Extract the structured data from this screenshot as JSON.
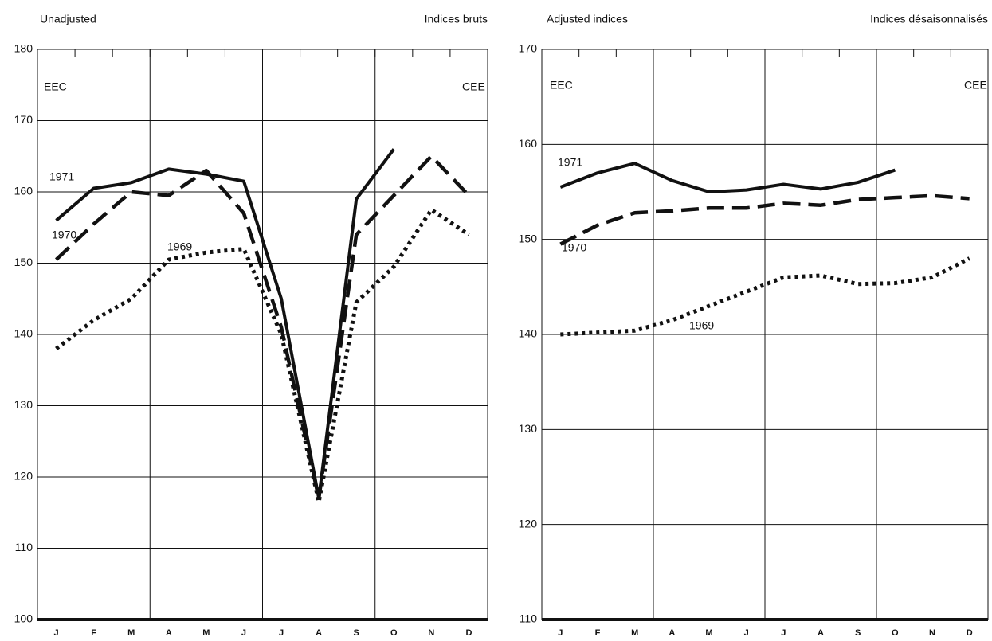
{
  "chart_data": [
    {
      "type": "line",
      "title": "Unadjusted",
      "subtitle": "Indices bruts",
      "annotations": [
        "EEC",
        "CEE"
      ],
      "categories": [
        "J",
        "F",
        "M",
        "A",
        "M",
        "J",
        "J",
        "A",
        "S",
        "O",
        "N",
        "D"
      ],
      "ylim": [
        100,
        180
      ],
      "yticks": [
        100,
        110,
        120,
        130,
        140,
        150,
        160,
        170,
        180
      ],
      "grid": true,
      "series": [
        {
          "name": "1971",
          "color": "#111111",
          "style": "solid",
          "values": [
            156,
            160.5,
            161.3,
            163.2,
            162.5,
            161.5,
            145,
            117,
            159,
            166,
            null,
            null
          ]
        },
        {
          "name": "1970",
          "color": "#111111",
          "style": "dashed",
          "values": [
            150.5,
            155.5,
            160,
            159.5,
            163,
            157,
            141,
            117,
            154,
            159.5,
            165,
            159.5
          ]
        },
        {
          "name": "1969",
          "color": "#111111",
          "style": "dotted",
          "values": [
            138,
            142,
            145,
            150.5,
            151.5,
            152,
            140,
            116.5,
            144.5,
            149.5,
            157.5,
            154
          ]
        }
      ]
    },
    {
      "type": "line",
      "title": "Adjusted indices",
      "subtitle": "Indices désaisonnalisés",
      "annotations": [
        "EEC",
        "CEE"
      ],
      "categories": [
        "J",
        "F",
        "M",
        "A",
        "M",
        "J",
        "J",
        "A",
        "S",
        "O",
        "N",
        "D"
      ],
      "ylim": [
        110,
        170
      ],
      "yticks": [
        110,
        120,
        130,
        140,
        150,
        160,
        170
      ],
      "grid": true,
      "series": [
        {
          "name": "1971",
          "color": "#111111",
          "style": "solid",
          "values": [
            155.5,
            157,
            158,
            156.2,
            155,
            155.2,
            155.8,
            155.3,
            156,
            157.3,
            null,
            null
          ]
        },
        {
          "name": "1970",
          "color": "#111111",
          "style": "dashed",
          "values": [
            149.5,
            151.5,
            152.8,
            153,
            153.3,
            153.3,
            153.8,
            153.6,
            154.2,
            154.4,
            154.6,
            154.3
          ]
        },
        {
          "name": "1969",
          "color": "#111111",
          "style": "dotted",
          "values": [
            140,
            140.2,
            140.4,
            141.5,
            143,
            144.5,
            146,
            146.2,
            145.3,
            145.4,
            146,
            148
          ]
        }
      ]
    }
  ]
}
